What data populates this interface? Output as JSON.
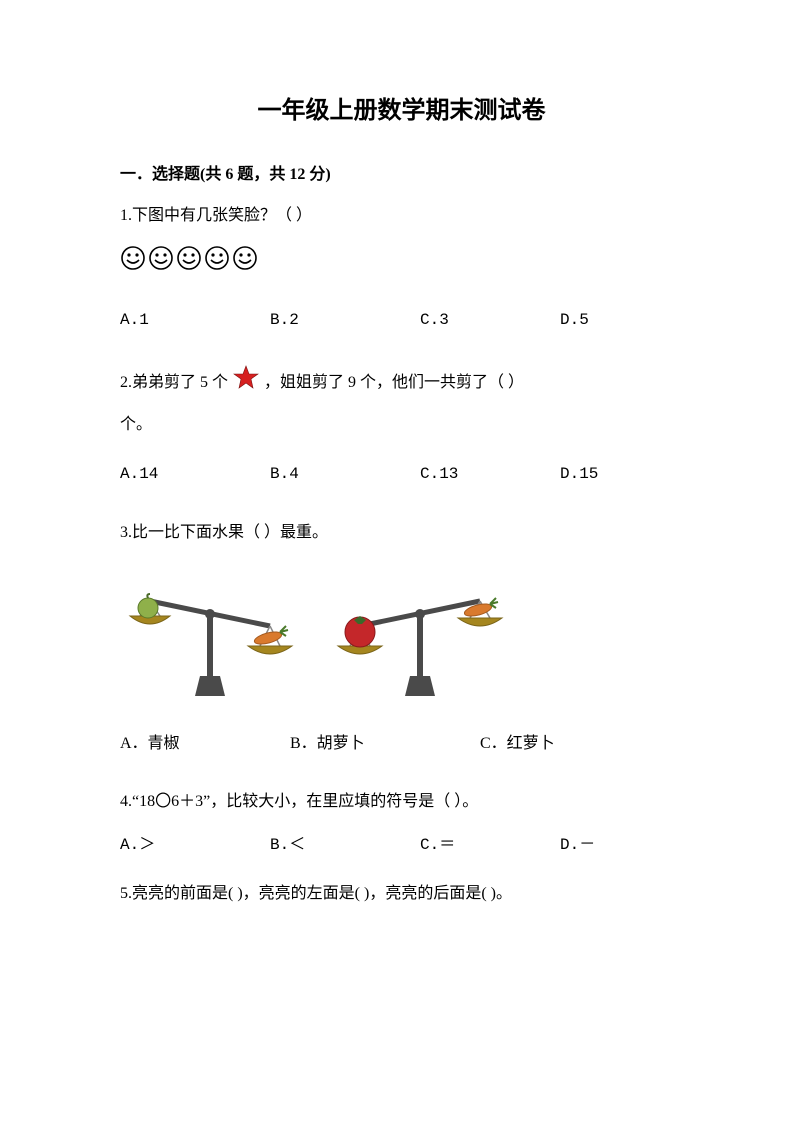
{
  "title": "一年级上册数学期末测试卷",
  "section1": {
    "header": "一．选择题(共 6 题，共 12 分)"
  },
  "q1": {
    "text": "1.下图中有几张笑脸？（     ）",
    "face_count": 5,
    "options": {
      "a": "A.1",
      "b": "B.2",
      "c": "C.3",
      "d": "D.5"
    }
  },
  "q2": {
    "text_pre": "2.弟弟剪了 5 个",
    "text_mid": "，姐姐剪了 9 个，他们一共剪了（     ）",
    "text_after": "个。",
    "star_color": "#d62020",
    "options": {
      "a": "A.14",
      "b": "B.4",
      "c": "C.13",
      "d": "D.15"
    }
  },
  "q3": {
    "text": "3.比一比下面水果（     ）最重。",
    "balance1": {
      "left_item": "pepper",
      "right_item": "carrot",
      "tilt": "right",
      "colors": {
        "pepper": "#8fb04a",
        "carrot": "#d97a2e",
        "carrot_leaf": "#4a7a2a",
        "pan": "#a5861f",
        "stand": "#4a4a4a"
      }
    },
    "balance2": {
      "left_item": "tomato",
      "right_item": "carrot",
      "tilt": "left",
      "colors": {
        "tomato": "#c4272a",
        "tomato_leaf": "#3a6a2a",
        "carrot": "#d97a2e",
        "carrot_leaf": "#4a7a2a",
        "pan": "#a5861f",
        "stand": "#4a4a4a"
      }
    },
    "options": {
      "a": "A．青椒",
      "b": "B．胡萝卜",
      "c": "C．红萝卜"
    }
  },
  "q4": {
    "text": "4.“18〇6＋3”，比较大小，在里应填的符号是（     ）。",
    "options": {
      "a": "A.＞",
      "b": "B.＜",
      "c": "C.＝",
      "d": "D.－"
    }
  },
  "q5": {
    "text": "5.亮亮的前面是(     )，亮亮的左面是(     )，亮亮的后面是(     )。"
  }
}
